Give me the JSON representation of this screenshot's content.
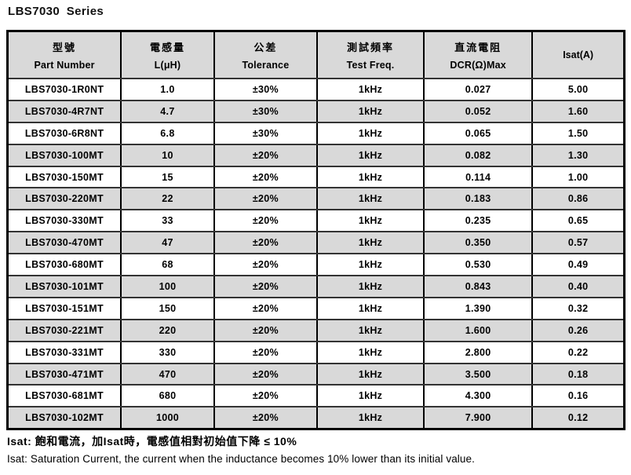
{
  "title": "LBS7030 Series",
  "colors": {
    "header_bg": "#d9d9d9",
    "row_alt_bg": "#d9d9d9",
    "row_bg": "#ffffff",
    "border": "#000000",
    "text": "#000000"
  },
  "table": {
    "column_keys": [
      "part-number",
      "inductance",
      "tolerance",
      "test-freq",
      "dcr",
      "isat"
    ],
    "columns": [
      {
        "zh": "型號",
        "en": "Part Number"
      },
      {
        "zh": "電感量",
        "en": "L(μH)"
      },
      {
        "zh": "公差",
        "en": "Tolerance"
      },
      {
        "zh": "測試頻率",
        "en": "Test Freq."
      },
      {
        "zh": "直流電阻",
        "en": "DCR(Ω)Max"
      },
      {
        "zh": "",
        "en": "Isat(A)"
      }
    ],
    "rows": [
      [
        "LBS7030-1R0NT",
        "1.0",
        "±30%",
        "1kHz",
        "0.027",
        "5.00"
      ],
      [
        "LBS7030-4R7NT",
        "4.7",
        "±30%",
        "1kHz",
        "0.052",
        "1.60"
      ],
      [
        "LBS7030-6R8NT",
        "6.8",
        "±30%",
        "1kHz",
        "0.065",
        "1.50"
      ],
      [
        "LBS7030-100MT",
        "10",
        "±20%",
        "1kHz",
        "0.082",
        "1.30"
      ],
      [
        "LBS7030-150MT",
        "15",
        "±20%",
        "1kHz",
        "0.114",
        "1.00"
      ],
      [
        "LBS7030-220MT",
        "22",
        "±20%",
        "1kHz",
        "0.183",
        "0.86"
      ],
      [
        "LBS7030-330MT",
        "33",
        "±20%",
        "1kHz",
        "0.235",
        "0.65"
      ],
      [
        "LBS7030-470MT",
        "47",
        "±20%",
        "1kHz",
        "0.350",
        "0.57"
      ],
      [
        "LBS7030-680MT",
        "68",
        "±20%",
        "1kHz",
        "0.530",
        "0.49"
      ],
      [
        "LBS7030-101MT",
        "100",
        "±20%",
        "1kHz",
        "0.843",
        "0.40"
      ],
      [
        "LBS7030-151MT",
        "150",
        "±20%",
        "1kHz",
        "1.390",
        "0.32"
      ],
      [
        "LBS7030-221MT",
        "220",
        "±20%",
        "1kHz",
        "1.600",
        "0.26"
      ],
      [
        "LBS7030-331MT",
        "330",
        "±20%",
        "1kHz",
        "2.800",
        "0.22"
      ],
      [
        "LBS7030-471MT",
        "470",
        "±20%",
        "1kHz",
        "3.500",
        "0.18"
      ],
      [
        "LBS7030-681MT",
        "680",
        "±20%",
        "1kHz",
        "4.300",
        "0.16"
      ],
      [
        "LBS7030-102MT",
        "1000",
        "±20%",
        "1kHz",
        "7.900",
        "0.12"
      ]
    ]
  },
  "notes": {
    "zh": "Isat: 飽和電流，加Isat時，電感值相對初始值下降 ≤ 10%",
    "en": "Isat: Saturation Current, the current when the inductance becomes 10% lower than its initial value."
  }
}
